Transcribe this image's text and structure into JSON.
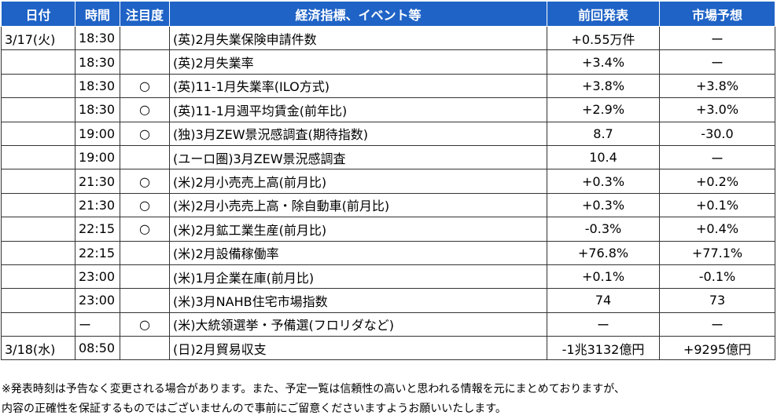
{
  "table": {
    "header": [
      "日付",
      "時間",
      "注目度",
      "経済指標、イベント等",
      "前回発表",
      "市場予想"
    ],
    "rows": [
      [
        "3/17(火)",
        "18:30",
        null,
        "(英)2月失業保険申請件数",
        "+0.55万件",
        "ー"
      ],
      [
        null,
        "18:30",
        null,
        "(英)2月失業率",
        "+3.4%",
        "ー"
      ],
      [
        null,
        "18:30",
        "○",
        "(英)11-1月失業率(ILO方式)",
        "+3.8%",
        "+3.8%"
      ],
      [
        null,
        "18:30",
        "○",
        "(英)11-1月週平均賃金(前年比)",
        "+2.9%",
        "+3.0%"
      ],
      [
        null,
        "19:00",
        "○",
        "(独)3月ZEW景況感調査(期待指数)",
        "8.7",
        "-30.0"
      ],
      [
        null,
        "19:00",
        null,
        "(ユーロ圏)3月ZEW景況感調査",
        "10.4",
        "ー"
      ],
      [
        null,
        "21:30",
        "○",
        "(米)2月小売売上高(前月比)",
        "+0.3%",
        "+0.2%"
      ],
      [
        null,
        "21:30",
        "○",
        "(米)2月小売売上高・除自動車(前月比)",
        "+0.3%",
        "+0.1%"
      ],
      [
        null,
        "22:15",
        "○",
        "(米)2月鉱工業生産(前月比)",
        "-0.3%",
        "+0.4%"
      ],
      [
        null,
        "22:15",
        null,
        "(米)2月設備稼働率",
        "+76.8%",
        "+77.1%"
      ],
      [
        null,
        "23:00",
        null,
        "(米)1月企業在庫(前月比)",
        "+0.1%",
        "-0.1%"
      ],
      [
        null,
        "23:00",
        null,
        "(米)3月NAHB住宅市場指数",
        "74",
        "73"
      ],
      [
        null,
        "ー",
        "○",
        "(米)大統領選挙・予備選(フロリダなど)",
        "ー",
        "ー"
      ],
      [
        "3/18(水)",
        "08:50",
        null,
        "(日)2月貿易収支",
        "-1兆3132億円",
        "+9295億円"
      ]
    ]
  },
  "footnote": [
    "※発表時刻は予告なく変更される場合があります。また、予定一覧は信頼性の高いと思われる情報を元にまとめておりますが、",
    "内容の正確性を保証するものではございませんので事前にご留意くださいますようお願いいたします。"
  ]
}
